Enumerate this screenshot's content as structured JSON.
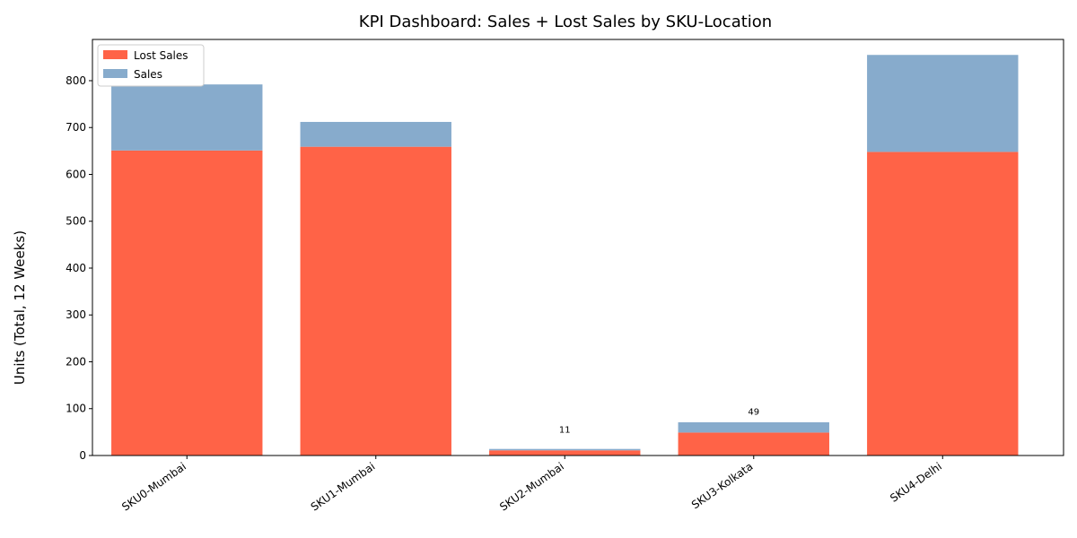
{
  "chart_data": {
    "type": "stacked_bar",
    "title": "KPI Dashboard: Sales + Lost Sales by SKU-Location",
    "y_label": "Units (Total, 12 Weeks)",
    "categories": [
      "SKU0-Mumbai",
      "SKU1-Mumbai",
      "SKU2-Mumbai",
      "SKU3-Kolkata",
      "SKU4-Delhi"
    ],
    "series": [
      {
        "name": "Lost Sales",
        "color": "#ff6347",
        "values": [
          651,
          659,
          11,
          49,
          648
        ]
      },
      {
        "name": "Sales",
        "color": "#87abcc",
        "values": [
          141,
          53,
          3,
          22,
          207
        ]
      }
    ],
    "data_labels_series": 0,
    "ylim": [
      0,
      888
    ],
    "yticks": [
      0,
      100,
      200,
      300,
      400,
      500,
      600,
      700,
      800
    ],
    "legend": "upper-left"
  }
}
